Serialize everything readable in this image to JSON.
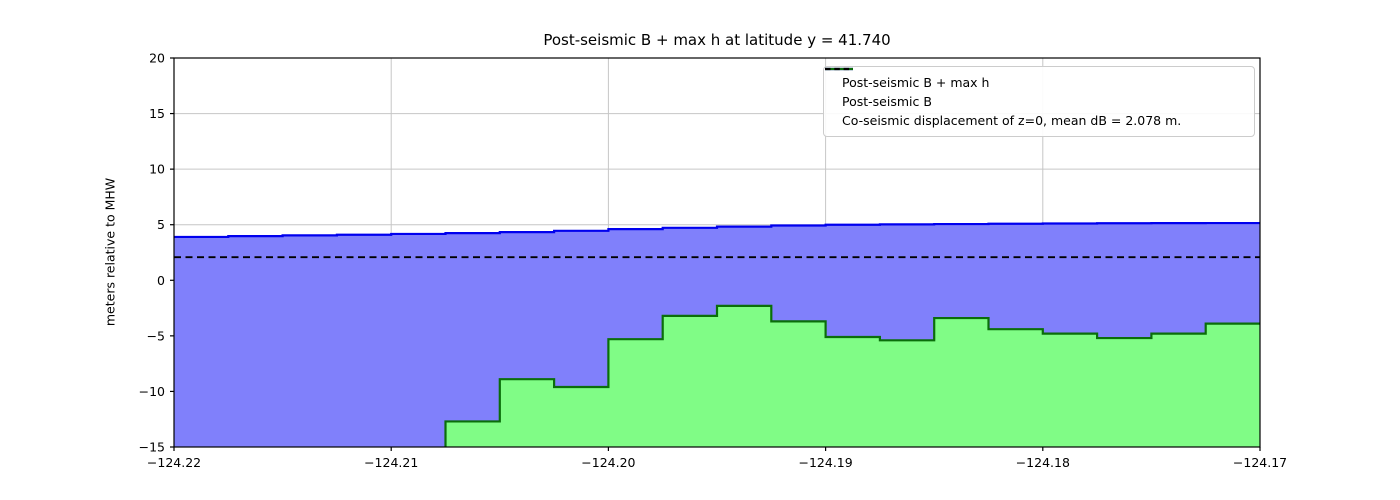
{
  "legend": {
    "items": [
      {
        "label": "Post-seismic B + max h",
        "color": "#0000ee",
        "style": "solid"
      },
      {
        "label": "Post-seismic B",
        "color": "#0a6e0a",
        "style": "solid"
      },
      {
        "label": "Co-seismic displacement of z=0, mean dB = 2.078 m.",
        "color": "#000000",
        "style": "dashed"
      }
    ]
  },
  "chart_data": {
    "type": "area",
    "title": "Post-seismic B + max h at latitude y = 41.740",
    "xlabel": "",
    "ylabel": "meters relative to MHW",
    "xlim": [
      -124.22,
      -124.17
    ],
    "ylim": [
      -15,
      20
    ],
    "grid": true,
    "legend_position": "upper right",
    "xticks": [
      -124.22,
      -124.21,
      -124.2,
      -124.19,
      -124.18,
      -124.17
    ],
    "xtick_labels": [
      "−124.22",
      "−124.21",
      "−124.20",
      "−124.19",
      "−124.18",
      "−124.17"
    ],
    "yticks": [
      -15,
      -10,
      -5,
      0,
      5,
      10,
      15,
      20
    ],
    "ytick_labels": [
      "−15",
      "−10",
      "−5",
      "0",
      "5",
      "10",
      "15",
      "20"
    ],
    "step_edges": [
      -124.22,
      -124.2175,
      -124.215,
      -124.2125,
      -124.21,
      -124.2075,
      -124.205,
      -124.2025,
      -124.2,
      -124.1975,
      -124.195,
      -124.1925,
      -124.19,
      -124.1875,
      -124.185,
      -124.1825,
      -124.18,
      -124.1775,
      -124.175,
      -124.1725,
      -124.17
    ],
    "series": [
      {
        "name": "Post-seismic B + max h",
        "type": "step-fill",
        "values": [
          3.9,
          3.97,
          4.04,
          4.1,
          4.17,
          4.24,
          4.33,
          4.45,
          4.6,
          4.72,
          4.83,
          4.93,
          5.0,
          5.03,
          5.06,
          5.09,
          5.11,
          5.13,
          5.14,
          5.15
        ]
      },
      {
        "name": "Post-seismic B",
        "type": "step-fill",
        "values": [
          null,
          null,
          null,
          null,
          null,
          -12.7,
          -8.9,
          -9.6,
          -5.3,
          -3.2,
          -2.3,
          -3.7,
          -5.1,
          -5.4,
          -3.4,
          -4.4,
          -4.8,
          -5.2,
          -4.8,
          -3.9
        ]
      },
      {
        "name": "Co-seismic displacement of z=0, mean dB = 2.078 m.",
        "type": "hline",
        "y": 2.078,
        "dashed": true
      }
    ],
    "colors": {
      "blue_line": "#0000ee",
      "blue_fill": "#8080fb",
      "green_line": "#0a6e0a",
      "green_fill": "#80fc86",
      "dashed_line": "#000000",
      "grid": "#c6c6c6",
      "frame": "#000000"
    }
  }
}
